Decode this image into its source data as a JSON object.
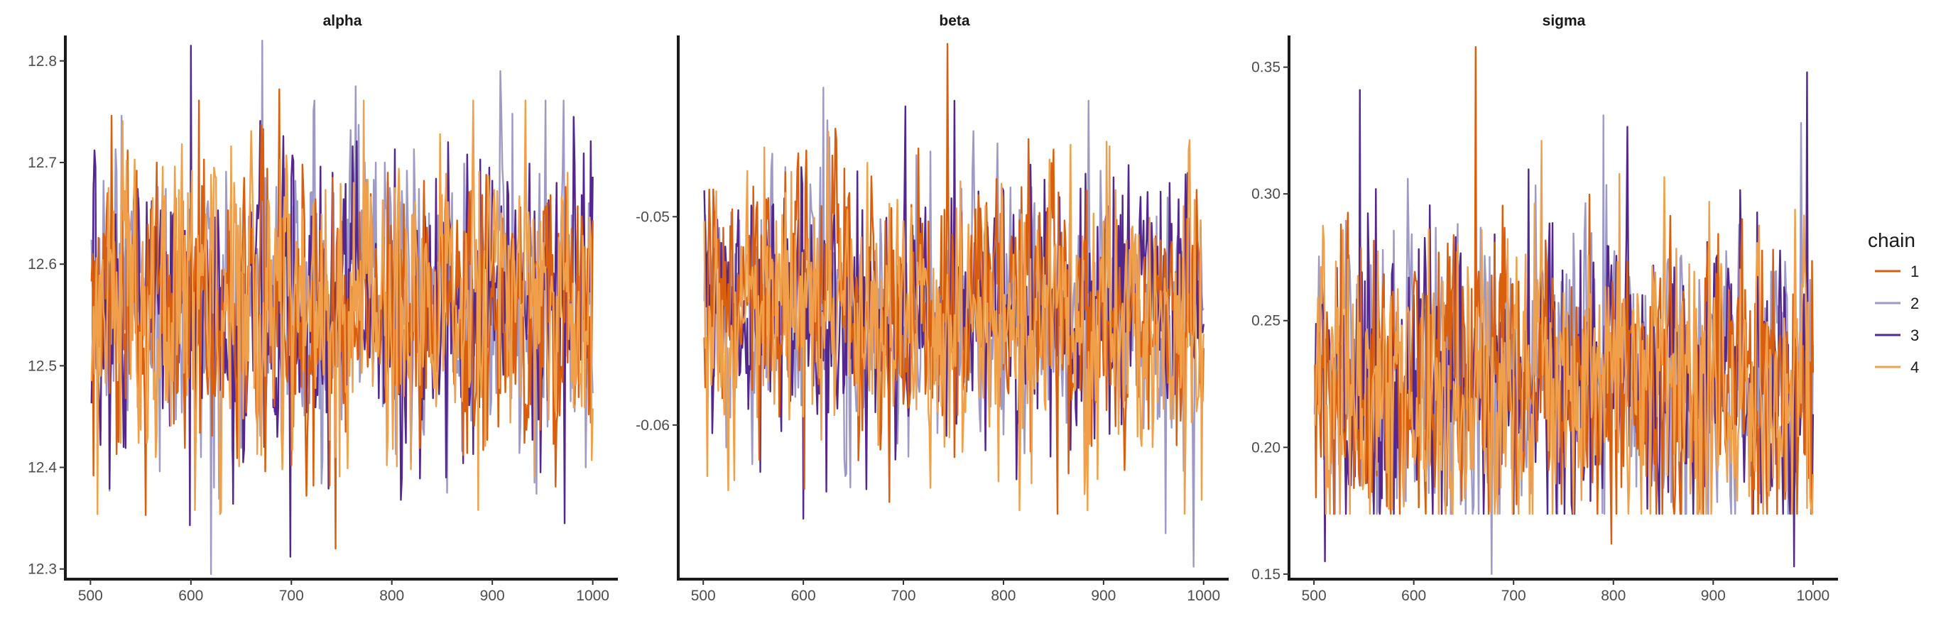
{
  "chart_data": [
    {
      "type": "line",
      "title": "alpha",
      "x_range": [
        501,
        1000
      ],
      "xlim": [
        475,
        1025
      ],
      "ylim": [
        12.29,
        12.825
      ],
      "x_ticks": [
        500,
        600,
        700,
        800,
        900,
        1000
      ],
      "y_ticks": [
        12.3,
        12.4,
        12.5,
        12.6,
        12.7,
        12.8
      ],
      "x_tick_labels": [
        "500",
        "600",
        "700",
        "800",
        "900",
        "1000"
      ],
      "y_tick_labels": [
        "12.3",
        "12.4",
        "12.5",
        "12.6",
        "12.7",
        "12.8"
      ],
      "center": 12.56,
      "sd": 0.075,
      "extremes": [
        {
          "chain": "3",
          "x": 600,
          "y": 12.815
        },
        {
          "chain": "2",
          "x": 671,
          "y": 12.82
        },
        {
          "chain": "2",
          "x": 620,
          "y": 12.295
        },
        {
          "chain": "3",
          "x": 699,
          "y": 12.312
        },
        {
          "chain": "1",
          "x": 744,
          "y": 12.32
        },
        {
          "chain": "1",
          "x": 688,
          "y": 12.772
        },
        {
          "chain": "2",
          "x": 908,
          "y": 12.79
        },
        {
          "chain": "2",
          "x": 764,
          "y": 12.775
        },
        {
          "chain": "4",
          "x": 886,
          "y": 12.358
        },
        {
          "chain": "3",
          "x": 972,
          "y": 12.345
        },
        {
          "chain": "3",
          "x": 599,
          "y": 12.343
        },
        {
          "chain": "1",
          "x": 555,
          "y": 12.353
        }
      ],
      "series": [
        {
          "name": "1",
          "values": []
        },
        {
          "name": "2",
          "values": []
        },
        {
          "name": "3",
          "values": []
        },
        {
          "name": "4",
          "values": []
        }
      ]
    },
    {
      "type": "line",
      "title": "beta",
      "x_range": [
        501,
        1000
      ],
      "xlim": [
        475,
        1025
      ],
      "ylim": [
        -0.0674,
        -0.0413
      ],
      "x_ticks": [
        500,
        600,
        700,
        800,
        900,
        1000
      ],
      "y_ticks": [
        -0.06,
        -0.05
      ],
      "x_tick_labels": [
        "500",
        "600",
        "700",
        "800",
        "900",
        "1000"
      ],
      "y_tick_labels": [
        "-0.06",
        "-0.05"
      ],
      "center": -0.0545,
      "sd": 0.0032,
      "extremes": [
        {
          "chain": "1",
          "x": 744,
          "y": -0.0417
        },
        {
          "chain": "2",
          "x": 620,
          "y": -0.0438
        },
        {
          "chain": "3",
          "x": 702,
          "y": -0.0447
        },
        {
          "chain": "2",
          "x": 990,
          "y": -0.0668
        },
        {
          "chain": "2",
          "x": 962,
          "y": -0.0652
        },
        {
          "chain": "3",
          "x": 600,
          "y": -0.0645
        },
        {
          "chain": "1",
          "x": 686,
          "y": -0.0637
        },
        {
          "chain": "4",
          "x": 816,
          "y": -0.0641
        },
        {
          "chain": "4",
          "x": 884,
          "y": -0.0641
        },
        {
          "chain": "4",
          "x": 998,
          "y": -0.0636
        }
      ],
      "series": [
        {
          "name": "1",
          "values": []
        },
        {
          "name": "2",
          "values": []
        },
        {
          "name": "3",
          "values": []
        },
        {
          "name": "4",
          "values": []
        }
      ]
    },
    {
      "type": "line",
      "title": "sigma",
      "x_range": [
        501,
        1000
      ],
      "xlim": [
        475,
        1025
      ],
      "ylim": [
        0.148,
        0.3625
      ],
      "x_ticks": [
        500,
        600,
        700,
        800,
        900,
        1000
      ],
      "y_ticks": [
        0.15,
        0.2,
        0.25,
        0.3,
        0.35
      ],
      "x_tick_labels": [
        "500",
        "600",
        "700",
        "800",
        "900",
        "1000"
      ],
      "y_tick_labels": [
        "0.15",
        "0.20",
        "0.25",
        "0.30",
        "0.35"
      ],
      "center": 0.225,
      "sd": 0.03,
      "extremes": [
        {
          "chain": "1",
          "x": 662,
          "y": 0.358
        },
        {
          "chain": "3",
          "x": 994,
          "y": 0.348
        },
        {
          "chain": "3",
          "x": 546,
          "y": 0.341
        },
        {
          "chain": "2",
          "x": 790,
          "y": 0.331
        },
        {
          "chain": "2",
          "x": 988,
          "y": 0.328
        },
        {
          "chain": "2",
          "x": 678,
          "y": 0.15
        },
        {
          "chain": "3",
          "x": 511,
          "y": 0.155
        },
        {
          "chain": "3",
          "x": 981,
          "y": 0.153
        },
        {
          "chain": "1",
          "x": 798,
          "y": 0.162
        },
        {
          "chain": "4",
          "x": 994,
          "y": 0.176
        }
      ],
      "series": [
        {
          "name": "1",
          "values": []
        },
        {
          "name": "2",
          "values": []
        },
        {
          "name": "3",
          "values": []
        },
        {
          "name": "4",
          "values": []
        }
      ]
    }
  ],
  "legend": {
    "title": "chain",
    "placement": "right",
    "items": [
      {
        "label": "1",
        "color": "#d95f0e"
      },
      {
        "label": "2",
        "color": "#9e9ac8"
      },
      {
        "label": "3",
        "color": "#54278f"
      },
      {
        "label": "4",
        "color": "#f0a04b"
      }
    ]
  },
  "draw_order": [
    "2",
    "3",
    "1",
    "4"
  ]
}
